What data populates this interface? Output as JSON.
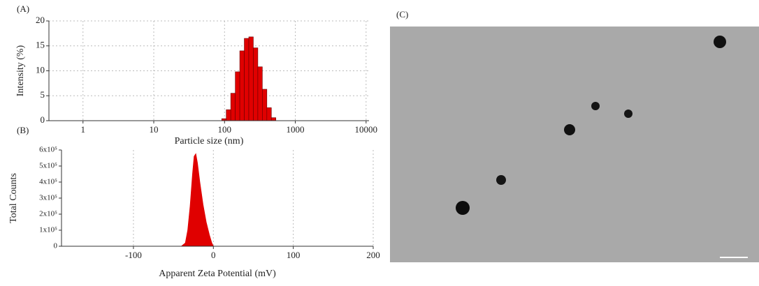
{
  "chart_data": [
    {
      "type": "histogram",
      "panel": "(A)",
      "xlabel": "Particle size (nm)",
      "ylabel": "Intensity (%)",
      "xscale": "log",
      "xlim": [
        0.33,
        11000
      ],
      "xticks": [
        1,
        10,
        100,
        1000,
        10000
      ],
      "ylim": [
        0,
        20
      ],
      "yticks": [
        0,
        5,
        10,
        15,
        20
      ],
      "grid": "both",
      "color": "#e00000",
      "bins": [
        91.28,
        105.7,
        122.4,
        141.8,
        164.2,
        190.1,
        220.2,
        255.0,
        295.3,
        342.0,
        396.1,
        458.7,
        531.2
      ],
      "values": [
        0.4,
        2.2,
        5.5,
        9.8,
        14.0,
        16.5,
        16.8,
        14.6,
        10.8,
        6.3,
        2.6,
        0.6
      ]
    },
    {
      "type": "area",
      "panel": "(B)",
      "xlabel": "Apparent Zeta Potential (mV)",
      "ylabel": "Total Counts",
      "xlim": [
        -190,
        200
      ],
      "xticks": [
        -100,
        0,
        100,
        200
      ],
      "ylim": [
        0,
        600000
      ],
      "yticks": [
        0,
        {
          "value": 100000,
          "label": "1x10⁵"
        },
        {
          "value": 200000,
          "label": "2x10⁵"
        },
        {
          "value": 300000,
          "label": "3x10⁵"
        },
        {
          "value": 400000,
          "label": "4x10⁵"
        },
        {
          "value": 500000,
          "label": "5x10⁵"
        },
        {
          "value": 600000,
          "label": "6x10⁵"
        }
      ],
      "grid": "x",
      "color": "#e00000",
      "x": [
        -40,
        -35,
        -32,
        -29,
        -26,
        -24,
        -22,
        -20,
        -17,
        -13,
        -9,
        -5,
        -2,
        0
      ],
      "values": [
        0,
        20000,
        100000,
        250000,
        450000,
        560000,
        575000,
        520000,
        400000,
        260000,
        150000,
        70000,
        20000,
        0
      ]
    }
  ],
  "image": {
    "panel": "(C)"
  }
}
